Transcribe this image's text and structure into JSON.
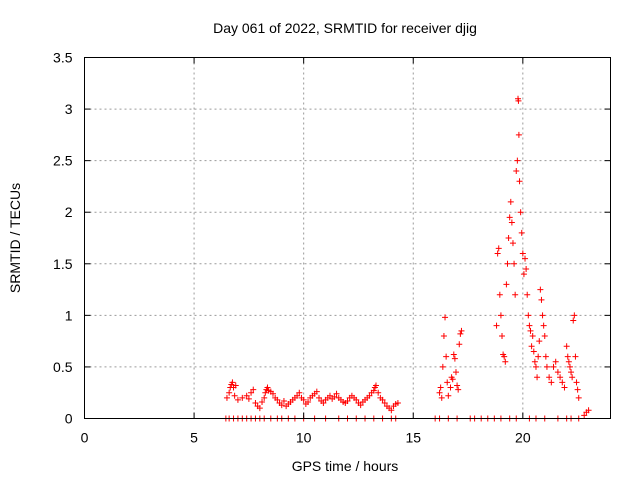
{
  "chart_data": {
    "type": "scatter",
    "title": "Day 061 of 2022, SRMTID for receiver djig",
    "xlabel": "GPS time / hours",
    "ylabel": "SRMTID / TECUs",
    "xlim": [
      0,
      24
    ],
    "ylim": [
      0,
      3.5
    ],
    "xticks": [
      0,
      5,
      10,
      15,
      20
    ],
    "xtick_labels": [
      "0",
      "5",
      "10",
      "15",
      "20"
    ],
    "yticks": [
      0,
      0.5,
      1,
      1.5,
      2,
      2.5,
      3,
      3.5
    ],
    "ytick_labels": [
      "0",
      "0.5",
      "1",
      "1.5",
      "2",
      "2.5",
      "3",
      "3.5"
    ],
    "grid": true,
    "marker": "+",
    "color": "#ff0000",
    "series": [
      {
        "name": "SRMTID",
        "points": [
          [
            6.45,
            0.0
          ],
          [
            6.6,
            0.0
          ],
          [
            6.8,
            0.0
          ],
          [
            7.0,
            0.0
          ],
          [
            7.2,
            0.0
          ],
          [
            7.4,
            0.0
          ],
          [
            7.6,
            0.0
          ],
          [
            7.8,
            0.0
          ],
          [
            8.0,
            0.0
          ],
          [
            8.2,
            0.0
          ],
          [
            8.5,
            0.0
          ],
          [
            8.8,
            0.0
          ],
          [
            9.0,
            0.0
          ],
          [
            9.3,
            0.0
          ],
          [
            9.6,
            0.0
          ],
          [
            10.0,
            0.0
          ],
          [
            10.5,
            0.0
          ],
          [
            11.0,
            0.0
          ],
          [
            11.6,
            0.0
          ],
          [
            12.0,
            0.0
          ],
          [
            12.4,
            0.0
          ],
          [
            12.8,
            0.0
          ],
          [
            13.2,
            0.0
          ],
          [
            13.6,
            0.0
          ],
          [
            14.0,
            0.0
          ],
          [
            14.2,
            0.0
          ],
          [
            16.0,
            0.0
          ],
          [
            16.2,
            0.0
          ],
          [
            16.6,
            0.0
          ],
          [
            17.0,
            0.0
          ],
          [
            17.6,
            0.0
          ],
          [
            17.8,
            0.0
          ],
          [
            18.1,
            0.0
          ],
          [
            18.4,
            0.0
          ],
          [
            18.7,
            0.0
          ],
          [
            19.0,
            0.0
          ],
          [
            19.4,
            0.0
          ],
          [
            19.7,
            0.0
          ],
          [
            20.3,
            0.0
          ],
          [
            20.6,
            0.0
          ],
          [
            21.0,
            0.0
          ],
          [
            21.6,
            0.0
          ],
          [
            22.0,
            0.0
          ],
          [
            22.2,
            0.0
          ],
          [
            22.55,
            0.0
          ],
          [
            6.5,
            0.2
          ],
          [
            6.6,
            0.25
          ],
          [
            6.65,
            0.3
          ],
          [
            6.7,
            0.33
          ],
          [
            6.75,
            0.35
          ],
          [
            6.8,
            0.3
          ],
          [
            6.85,
            0.22
          ],
          [
            6.9,
            0.32
          ],
          [
            7.0,
            0.18
          ],
          [
            7.2,
            0.2
          ],
          [
            7.4,
            0.22
          ],
          [
            7.5,
            0.19
          ],
          [
            7.6,
            0.25
          ],
          [
            7.7,
            0.28
          ],
          [
            7.8,
            0.15
          ],
          [
            7.9,
            0.12
          ],
          [
            8.0,
            0.1
          ],
          [
            8.1,
            0.16
          ],
          [
            8.2,
            0.2
          ],
          [
            8.25,
            0.25
          ],
          [
            8.3,
            0.28
          ],
          [
            8.35,
            0.3
          ],
          [
            8.4,
            0.27
          ],
          [
            8.5,
            0.26
          ],
          [
            8.6,
            0.24
          ],
          [
            8.7,
            0.2
          ],
          [
            8.8,
            0.18
          ],
          [
            8.9,
            0.15
          ],
          [
            9.0,
            0.13
          ],
          [
            9.1,
            0.17
          ],
          [
            9.2,
            0.12
          ],
          [
            9.3,
            0.14
          ],
          [
            9.4,
            0.16
          ],
          [
            9.5,
            0.18
          ],
          [
            9.6,
            0.2
          ],
          [
            9.7,
            0.22
          ],
          [
            9.8,
            0.25
          ],
          [
            9.9,
            0.2
          ],
          [
            10.0,
            0.18
          ],
          [
            10.1,
            0.14
          ],
          [
            10.2,
            0.16
          ],
          [
            10.3,
            0.2
          ],
          [
            10.4,
            0.22
          ],
          [
            10.5,
            0.24
          ],
          [
            10.6,
            0.26
          ],
          [
            10.7,
            0.2
          ],
          [
            10.8,
            0.17
          ],
          [
            10.9,
            0.15
          ],
          [
            11.0,
            0.18
          ],
          [
            11.1,
            0.2
          ],
          [
            11.2,
            0.22
          ],
          [
            11.3,
            0.19
          ],
          [
            11.4,
            0.21
          ],
          [
            11.5,
            0.24
          ],
          [
            11.6,
            0.2
          ],
          [
            11.7,
            0.18
          ],
          [
            11.8,
            0.16
          ],
          [
            11.9,
            0.15
          ],
          [
            12.0,
            0.17
          ],
          [
            12.1,
            0.2
          ],
          [
            12.2,
            0.22
          ],
          [
            12.3,
            0.2
          ],
          [
            12.4,
            0.18
          ],
          [
            12.5,
            0.15
          ],
          [
            12.6,
            0.13
          ],
          [
            12.7,
            0.16
          ],
          [
            12.8,
            0.18
          ],
          [
            12.9,
            0.2
          ],
          [
            13.0,
            0.22
          ],
          [
            13.1,
            0.25
          ],
          [
            13.2,
            0.27
          ],
          [
            13.25,
            0.3
          ],
          [
            13.3,
            0.32
          ],
          [
            13.4,
            0.25
          ],
          [
            13.5,
            0.2
          ],
          [
            13.6,
            0.18
          ],
          [
            13.7,
            0.15
          ],
          [
            13.8,
            0.12
          ],
          [
            13.9,
            0.1
          ],
          [
            14.0,
            0.08
          ],
          [
            14.1,
            0.12
          ],
          [
            14.2,
            0.14
          ],
          [
            14.3,
            0.15
          ],
          [
            16.2,
            0.25
          ],
          [
            16.25,
            0.3
          ],
          [
            16.3,
            0.2
          ],
          [
            16.35,
            0.5
          ],
          [
            16.4,
            0.8
          ],
          [
            16.45,
            0.98
          ],
          [
            16.5,
            0.6
          ],
          [
            16.55,
            0.35
          ],
          [
            16.6,
            0.22
          ],
          [
            16.7,
            0.3
          ],
          [
            16.75,
            0.4
          ],
          [
            16.8,
            0.38
          ],
          [
            16.85,
            0.62
          ],
          [
            16.9,
            0.58
          ],
          [
            16.95,
            0.45
          ],
          [
            17.0,
            0.32
          ],
          [
            17.05,
            0.28
          ],
          [
            17.1,
            0.72
          ],
          [
            17.15,
            0.82
          ],
          [
            17.2,
            0.85
          ],
          [
            18.8,
            0.9
          ],
          [
            18.85,
            1.6
          ],
          [
            18.9,
            1.65
          ],
          [
            18.95,
            1.2
          ],
          [
            19.0,
            1.0
          ],
          [
            19.05,
            0.8
          ],
          [
            19.1,
            0.62
          ],
          [
            19.15,
            0.6
          ],
          [
            19.2,
            0.55
          ],
          [
            19.25,
            1.3
          ],
          [
            19.3,
            1.5
          ],
          [
            19.35,
            1.75
          ],
          [
            19.4,
            1.95
          ],
          [
            19.45,
            2.1
          ],
          [
            19.5,
            1.9
          ],
          [
            19.55,
            1.7
          ],
          [
            19.6,
            1.5
          ],
          [
            19.65,
            1.2
          ],
          [
            19.7,
            2.4
          ],
          [
            19.75,
            2.5
          ],
          [
            19.78,
            3.1
          ],
          [
            19.8,
            3.08
          ],
          [
            19.82,
            2.75
          ],
          [
            19.85,
            2.3
          ],
          [
            19.9,
            2.0
          ],
          [
            19.95,
            1.8
          ],
          [
            20.0,
            1.6
          ],
          [
            20.05,
            1.4
          ],
          [
            20.1,
            1.55
          ],
          [
            20.15,
            1.45
          ],
          [
            20.2,
            1.2
          ],
          [
            20.25,
            1.0
          ],
          [
            20.3,
            0.9
          ],
          [
            20.35,
            0.85
          ],
          [
            20.4,
            0.7
          ],
          [
            20.45,
            0.8
          ],
          [
            20.5,
            0.65
          ],
          [
            20.55,
            0.55
          ],
          [
            20.6,
            0.5
          ],
          [
            20.65,
            0.4
          ],
          [
            20.7,
            0.6
          ],
          [
            20.75,
            0.75
          ],
          [
            20.8,
            1.25
          ],
          [
            20.85,
            1.15
          ],
          [
            20.9,
            1.0
          ],
          [
            20.95,
            0.9
          ],
          [
            21.0,
            0.8
          ],
          [
            21.05,
            0.6
          ],
          [
            21.1,
            0.5
          ],
          [
            21.2,
            0.4
          ],
          [
            21.3,
            0.35
          ],
          [
            21.4,
            0.5
          ],
          [
            21.5,
            0.55
          ],
          [
            21.6,
            0.45
          ],
          [
            21.7,
            0.4
          ],
          [
            21.8,
            0.35
          ],
          [
            21.9,
            0.3
          ],
          [
            22.0,
            0.7
          ],
          [
            22.05,
            0.6
          ],
          [
            22.1,
            0.55
          ],
          [
            22.15,
            0.5
          ],
          [
            22.2,
            0.45
          ],
          [
            22.25,
            0.4
          ],
          [
            22.3,
            0.95
          ],
          [
            22.35,
            1.0
          ],
          [
            22.4,
            0.6
          ],
          [
            22.45,
            0.35
          ],
          [
            22.5,
            0.28
          ],
          [
            22.55,
            0.2
          ],
          [
            22.8,
            0.03
          ],
          [
            22.9,
            0.06
          ],
          [
            23.0,
            0.08
          ]
        ]
      }
    ]
  }
}
